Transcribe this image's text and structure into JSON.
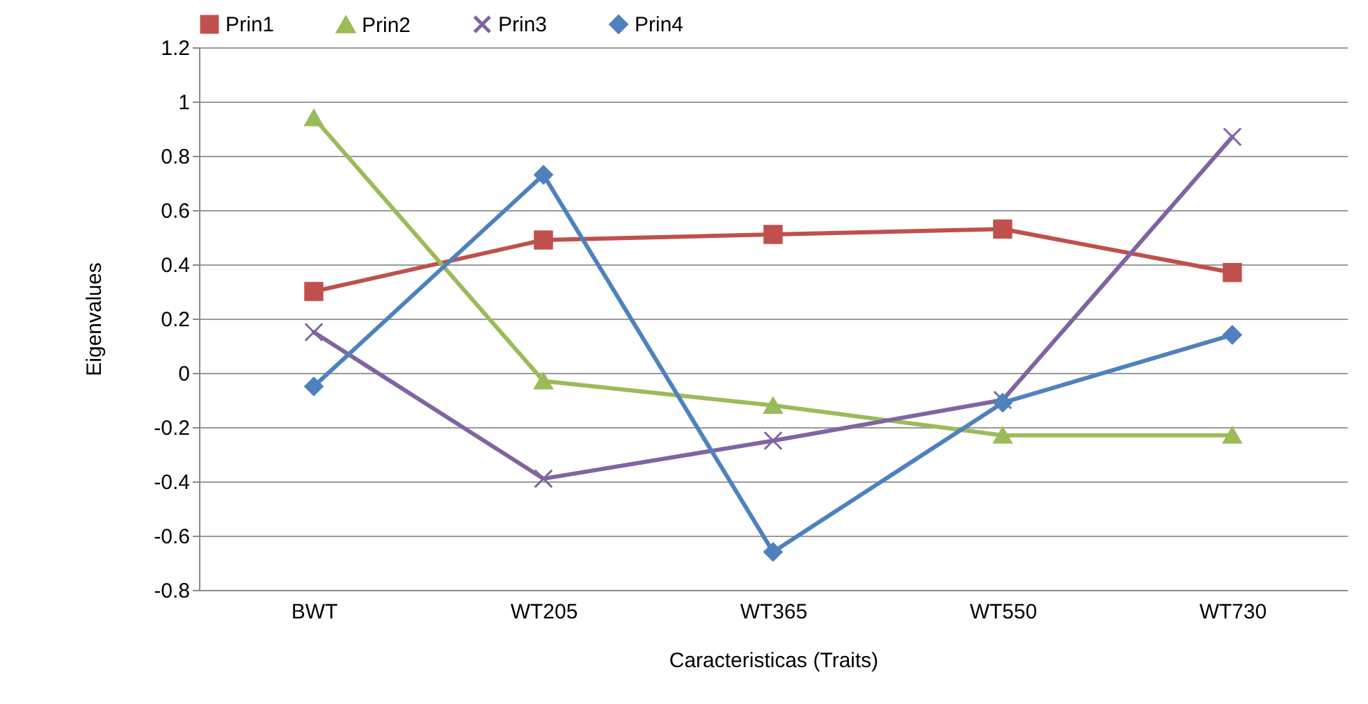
{
  "chart_data": {
    "type": "line",
    "xlabel": "Caracteristicas (Traits)",
    "ylabel": "Eigenvalues",
    "categories": [
      "BWT",
      "WT205",
      "WT365",
      "WT550",
      "WT730"
    ],
    "series": [
      {
        "name": "Prin1",
        "color": "#c0504d",
        "marker": "square",
        "values": [
          0.3,
          0.49,
          0.51,
          0.53,
          0.37
        ]
      },
      {
        "name": "Prin2",
        "color": "#9bbb59",
        "marker": "triangle",
        "values": [
          0.94,
          -0.03,
          -0.12,
          -0.23,
          -0.23
        ]
      },
      {
        "name": "Prin3",
        "color": "#8064a2",
        "marker": "cross",
        "values": [
          0.15,
          -0.39,
          -0.25,
          -0.1,
          0.87
        ]
      },
      {
        "name": "Prin4",
        "color": "#4f81bd",
        "marker": "diamond",
        "values": [
          -0.05,
          0.73,
          -0.66,
          -0.11,
          0.14
        ]
      }
    ],
    "ylim": [
      -0.8,
      1.2
    ],
    "yticks": [
      -0.8,
      -0.6,
      -0.4,
      -0.2,
      0,
      0.2,
      0.4,
      0.6,
      0.8,
      1,
      1.2
    ],
    "grid": "y",
    "legend": "top",
    "line_style": "solid"
  }
}
